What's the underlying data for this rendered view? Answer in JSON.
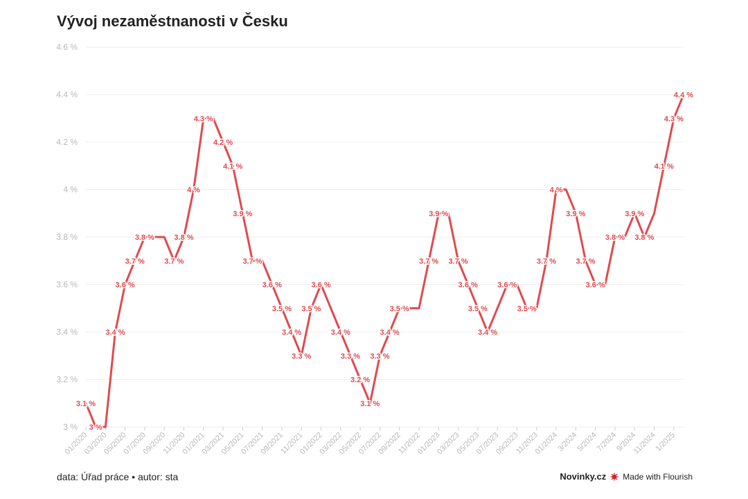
{
  "colors": {
    "line": "#e0494e",
    "grid": "#eeeeee",
    "axis_text": "#b8b8b8",
    "flourish": "#d5212e"
  },
  "footer": {
    "source": "data: Úřad práce • autor: sta",
    "brand": "Novinky.cz",
    "made_with": "Made with Flourish"
  },
  "chart_data": {
    "type": "line",
    "title": "Vývoj nezaměstnanosti v Česku",
    "ylim": [
      3.0,
      4.6
    ],
    "yticks": [
      {
        "value": 3.0,
        "label": "3 %"
      },
      {
        "value": 3.2,
        "label": "3.2 %"
      },
      {
        "value": 3.4,
        "label": "3.4 %"
      },
      {
        "value": 3.6,
        "label": "3.6 %"
      },
      {
        "value": 3.8,
        "label": "3.8 %"
      },
      {
        "value": 4.0,
        "label": "4 %"
      },
      {
        "value": 4.2,
        "label": "4.2 %"
      },
      {
        "value": 4.4,
        "label": "4.4 %"
      },
      {
        "value": 4.6,
        "label": "4.6 %"
      }
    ],
    "grid": true,
    "xticks": [
      {
        "index": 0,
        "label": "01/2020"
      },
      {
        "index": 2,
        "label": "03/2020"
      },
      {
        "index": 4,
        "label": "05/2020"
      },
      {
        "index": 6,
        "label": "07/2020"
      },
      {
        "index": 8,
        "label": "09/2020"
      },
      {
        "index": 10,
        "label": "11/2020"
      },
      {
        "index": 12,
        "label": "01/2021"
      },
      {
        "index": 14,
        "label": "03/2021"
      },
      {
        "index": 16,
        "label": "05/2021"
      },
      {
        "index": 18,
        "label": "07/2021"
      },
      {
        "index": 20,
        "label": "09/2021"
      },
      {
        "index": 22,
        "label": "11/2021"
      },
      {
        "index": 24,
        "label": "01/2022"
      },
      {
        "index": 26,
        "label": "03/2022"
      },
      {
        "index": 28,
        "label": "05/2022"
      },
      {
        "index": 30,
        "label": "07/2022"
      },
      {
        "index": 32,
        "label": "09/2022"
      },
      {
        "index": 34,
        "label": "11/2022"
      },
      {
        "index": 36,
        "label": "01/2023"
      },
      {
        "index": 38,
        "label": "03/2023"
      },
      {
        "index": 40,
        "label": "05/2023"
      },
      {
        "index": 42,
        "label": "07/2023"
      },
      {
        "index": 44,
        "label": "09/2023"
      },
      {
        "index": 46,
        "label": "11/2023"
      },
      {
        "index": 48,
        "label": "01/2024"
      },
      {
        "index": 50,
        "label": "3/2024"
      },
      {
        "index": 52,
        "label": "5/2024"
      },
      {
        "index": 54,
        "label": "7/2024"
      },
      {
        "index": 56,
        "label": "9/2024"
      },
      {
        "index": 58,
        "label": "11/2024"
      },
      {
        "index": 60,
        "label": "1/2025"
      }
    ],
    "values": [
      3.1,
      3.0,
      3.0,
      3.4,
      3.6,
      3.7,
      3.8,
      3.8,
      3.8,
      3.7,
      3.8,
      4.0,
      4.3,
      4.3,
      4.2,
      4.1,
      3.9,
      3.7,
      3.7,
      3.6,
      3.5,
      3.4,
      3.3,
      3.5,
      3.6,
      3.5,
      3.4,
      3.3,
      3.2,
      3.1,
      3.3,
      3.4,
      3.5,
      3.5,
      3.5,
      3.7,
      3.9,
      3.9,
      3.7,
      3.6,
      3.5,
      3.4,
      3.5,
      3.6,
      3.6,
      3.5,
      3.5,
      3.7,
      4.0,
      4.0,
      3.9,
      3.7,
      3.6,
      3.6,
      3.8,
      3.8,
      3.9,
      3.8,
      3.9,
      4.1,
      4.3,
      4.4
    ],
    "data_labels": [
      {
        "index": 0,
        "text": "3.1 %"
      },
      {
        "index": 1,
        "text": "3 %"
      },
      {
        "index": 3,
        "text": "3.4 %"
      },
      {
        "index": 4,
        "text": "3.6 %"
      },
      {
        "index": 5,
        "text": "3.7 %"
      },
      {
        "index": 6,
        "text": "3.8 %"
      },
      {
        "index": 9,
        "text": "3.7 %"
      },
      {
        "index": 10,
        "text": "3.8 %"
      },
      {
        "index": 11,
        "text": "4 %"
      },
      {
        "index": 12,
        "text": "4.3 %"
      },
      {
        "index": 14,
        "text": "4.2 %"
      },
      {
        "index": 15,
        "text": "4.1 %"
      },
      {
        "index": 16,
        "text": "3.9 %"
      },
      {
        "index": 17,
        "text": "3.7 %"
      },
      {
        "index": 19,
        "text": "3.6 %"
      },
      {
        "index": 20,
        "text": "3.5 %"
      },
      {
        "index": 21,
        "text": "3.4 %"
      },
      {
        "index": 22,
        "text": "3.3 %"
      },
      {
        "index": 23,
        "text": "3.5 %"
      },
      {
        "index": 24,
        "text": "3.6 %"
      },
      {
        "index": 26,
        "text": "3.4 %"
      },
      {
        "index": 27,
        "text": "3.3 %"
      },
      {
        "index": 28,
        "text": "3.2 %"
      },
      {
        "index": 29,
        "text": "3.1 %"
      },
      {
        "index": 30,
        "text": "3.3 %"
      },
      {
        "index": 31,
        "text": "3.4 %"
      },
      {
        "index": 32,
        "text": "3.5 %"
      },
      {
        "index": 35,
        "text": "3.7 %"
      },
      {
        "index": 36,
        "text": "3.9 %"
      },
      {
        "index": 38,
        "text": "3.7 %"
      },
      {
        "index": 39,
        "text": "3.6 %"
      },
      {
        "index": 40,
        "text": "3.5 %"
      },
      {
        "index": 41,
        "text": "3.4 %"
      },
      {
        "index": 43,
        "text": "3.6 %"
      },
      {
        "index": 45,
        "text": "3.5 %"
      },
      {
        "index": 47,
        "text": "3.7 %"
      },
      {
        "index": 48,
        "text": "4 %"
      },
      {
        "index": 50,
        "text": "3.9 %"
      },
      {
        "index": 51,
        "text": "3.7 %"
      },
      {
        "index": 52,
        "text": "3.6 %"
      },
      {
        "index": 54,
        "text": "3.8 %"
      },
      {
        "index": 56,
        "text": "3.9 %"
      },
      {
        "index": 57,
        "text": "3.8 %"
      },
      {
        "index": 59,
        "text": "4.1 %"
      },
      {
        "index": 60,
        "text": "4.3 %"
      },
      {
        "index": 61,
        "text": "4.4 %"
      }
    ]
  }
}
